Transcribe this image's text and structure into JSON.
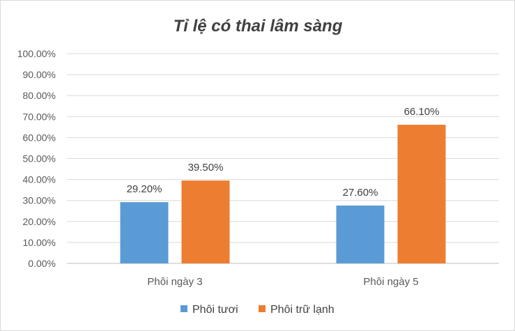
{
  "chart_data": {
    "type": "bar",
    "title": "Tỉ lệ có thai lâm sàng",
    "categories": [
      "Phôi ngày 3",
      "Phôi ngày 5"
    ],
    "series": [
      {
        "name": "Phôi tươi",
        "color": "#5b9bd5",
        "values": [
          29.2,
          27.6
        ],
        "labels": [
          "29.20%",
          "27.60%"
        ]
      },
      {
        "name": "Phôi trữ lạnh",
        "color": "#ed7d31",
        "values": [
          39.5,
          66.1
        ],
        "labels": [
          "39.50%",
          "66.10%"
        ]
      }
    ],
    "ylim": [
      0,
      100
    ],
    "yticks": [
      "0.00%",
      "10.00%",
      "20.00%",
      "30.00%",
      "40.00%",
      "50.00%",
      "60.00%",
      "70.00%",
      "80.00%",
      "90.00%",
      "100.00%"
    ],
    "xlabel": "",
    "ylabel": "",
    "grid": true,
    "legend_position": "bottom"
  }
}
